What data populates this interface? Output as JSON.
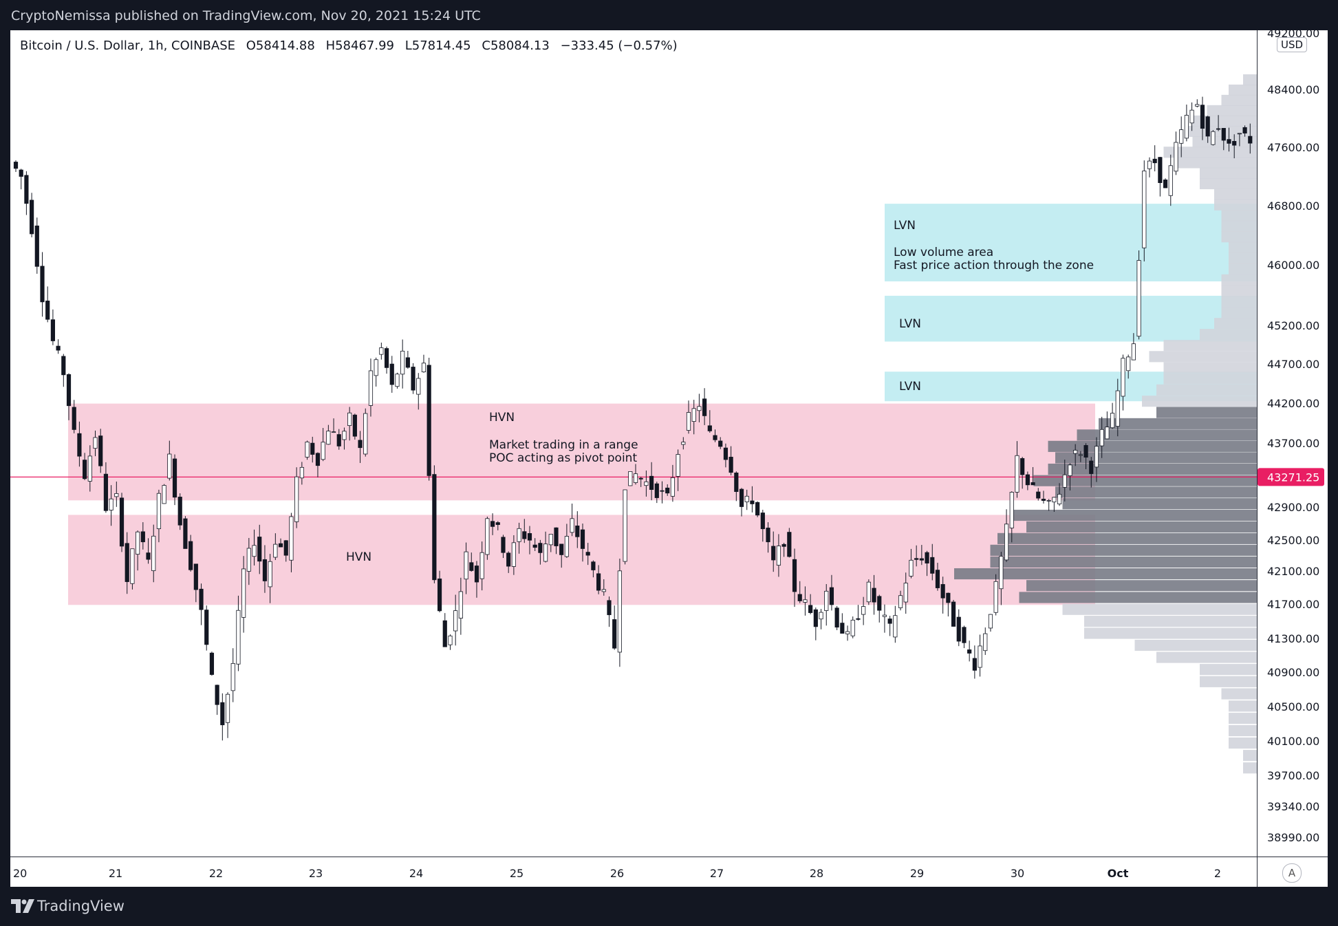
{
  "publisher_line": "CryptoNemissa published on TradingView.com, Nov 20, 2021 15:24 UTC",
  "legend": {
    "symbol": "Bitcoin / U.S. Dollar, 1h, COINBASE",
    "open": "O58414.88",
    "high": "H58467.99",
    "low": "L57814.45",
    "close": "C58084.13",
    "change": "−333.45 (−0.57%)"
  },
  "currency": "USD",
  "brand": "TradingView",
  "auto_label": "A",
  "colors": {
    "hvn_fill": "#f8cfdc",
    "lvn_fill": "#c4edf2",
    "poc_line": "#e91e63",
    "poc_label_bg": "#e91e63",
    "candle_up": "#ffffff",
    "candle_down": "#131722",
    "profile_light": "#d1d4dc",
    "profile_dark": "#787b86",
    "background_dark": "#131722"
  },
  "price_ticks": [
    "49200.00",
    "48400.00",
    "47600.00",
    "46800.00",
    "46000.00",
    "45200.00",
    "44700.00",
    "44200.00",
    "43700.00",
    "42900.00",
    "42500.00",
    "42100.00",
    "41700.00",
    "41300.00",
    "40900.00",
    "40500.00",
    "40100.00",
    "39700.00",
    "39340.00",
    "38990.00"
  ],
  "time_ticks": [
    "20",
    "21",
    "22",
    "23",
    "24",
    "25",
    "26",
    "27",
    "28",
    "29",
    "30",
    "Oct",
    "2"
  ],
  "poc_price": "43271.25",
  "zones": {
    "hvn_upper": {
      "title": "HVN",
      "line1": "Market trading in a range",
      "line2": "POC acting as pivot point",
      "price_top": 44200,
      "price_bottom": 42980
    },
    "hvn_lower": {
      "title": "HVN",
      "price_top": 42800,
      "price_bottom": 41700
    },
    "lvn_top": {
      "title": "LVN",
      "line1": "Low volume area",
      "line2": "Fast price action through the zone",
      "price_top": 46830,
      "price_bottom": 45790
    },
    "lvn_mid": {
      "title": "LVN",
      "price_top": 45600,
      "price_bottom": 45000
    },
    "lvn_low": {
      "title": "LVN",
      "price_top": 44610,
      "price_bottom": 44230
    }
  },
  "chart_data": {
    "type": "candlestick",
    "title": "Bitcoin / U.S. Dollar, 1h, COINBASE",
    "x_axis_labels": [
      "20",
      "21",
      "22",
      "23",
      "24",
      "25",
      "26",
      "27",
      "28",
      "29",
      "30",
      "Oct",
      "2"
    ],
    "ylim": [
      38800,
      49300
    ],
    "y_scale": "log",
    "poc": 43271.25,
    "close_path": [
      [
        0,
        47400
      ],
      [
        2,
        47200
      ],
      [
        4,
        46500
      ],
      [
        6,
        45600
      ],
      [
        8,
        45000
      ],
      [
        10,
        44600
      ],
      [
        12,
        43800
      ],
      [
        14,
        43300
      ],
      [
        16,
        43800
      ],
      [
        18,
        42900
      ],
      [
        20,
        43000
      ],
      [
        22,
        42000
      ],
      [
        24,
        42600
      ],
      [
        26,
        42200
      ],
      [
        28,
        43000
      ],
      [
        30,
        43500
      ],
      [
        32,
        42700
      ],
      [
        34,
        42200
      ],
      [
        36,
        41600
      ],
      [
        38,
        40800
      ],
      [
        40,
        40300
      ],
      [
        42,
        41000
      ],
      [
        44,
        42100
      ],
      [
        46,
        42500
      ],
      [
        48,
        42000
      ],
      [
        50,
        42500
      ],
      [
        52,
        42300
      ],
      [
        54,
        43200
      ],
      [
        56,
        43700
      ],
      [
        58,
        43500
      ],
      [
        60,
        43900
      ],
      [
        62,
        43700
      ],
      [
        64,
        44000
      ],
      [
        66,
        43600
      ],
      [
        68,
        44600
      ],
      [
        70,
        44900
      ],
      [
        72,
        44400
      ],
      [
        74,
        44800
      ],
      [
        76,
        44400
      ],
      [
        78,
        44700
      ],
      [
        80,
        42000
      ],
      [
        82,
        41200
      ],
      [
        84,
        41600
      ],
      [
        86,
        42300
      ],
      [
        88,
        42000
      ],
      [
        90,
        42800
      ],
      [
        92,
        42600
      ],
      [
        94,
        42200
      ],
      [
        96,
        42600
      ],
      [
        98,
        42500
      ],
      [
        100,
        42300
      ],
      [
        102,
        42600
      ],
      [
        104,
        42300
      ],
      [
        106,
        42700
      ],
      [
        108,
        42400
      ],
      [
        110,
        42100
      ],
      [
        112,
        41800
      ],
      [
        114,
        41200
      ],
      [
        116,
        43200
      ],
      [
        118,
        43300
      ],
      [
        120,
        43200
      ],
      [
        122,
        43100
      ],
      [
        124,
        43000
      ],
      [
        126,
        43600
      ],
      [
        128,
        44000
      ],
      [
        130,
        44200
      ],
      [
        132,
        43800
      ],
      [
        134,
        43700
      ],
      [
        136,
        43400
      ],
      [
        138,
        42900
      ],
      [
        140,
        43000
      ],
      [
        142,
        42600
      ],
      [
        144,
        42200
      ],
      [
        146,
        42500
      ],
      [
        148,
        41900
      ],
      [
        150,
        41700
      ],
      [
        152,
        41500
      ],
      [
        154,
        41900
      ],
      [
        156,
        41500
      ],
      [
        158,
        41300
      ],
      [
        160,
        41600
      ],
      [
        162,
        41900
      ],
      [
        164,
        41600
      ],
      [
        166,
        41400
      ],
      [
        168,
        41800
      ],
      [
        170,
        42200
      ],
      [
        172,
        42300
      ],
      [
        174,
        42100
      ],
      [
        176,
        41800
      ],
      [
        178,
        41500
      ],
      [
        180,
        41200
      ],
      [
        182,
        41000
      ],
      [
        184,
        41400
      ],
      [
        186,
        41900
      ],
      [
        188,
        42600
      ],
      [
        190,
        43500
      ],
      [
        192,
        43200
      ],
      [
        194,
        43000
      ],
      [
        196,
        42900
      ],
      [
        198,
        43100
      ],
      [
        200,
        43500
      ],
      [
        202,
        43600
      ],
      [
        204,
        43400
      ],
      [
        206,
        43800
      ],
      [
        208,
        44000
      ],
      [
        210,
        44700
      ],
      [
        212,
        45000
      ],
      [
        214,
        47300
      ],
      [
        216,
        47400
      ],
      [
        218,
        47000
      ],
      [
        220,
        47600
      ],
      [
        222,
        48000
      ],
      [
        224,
        48200
      ],
      [
        226,
        47700
      ],
      [
        228,
        47900
      ],
      [
        230,
        47600
      ],
      [
        232,
        47800
      ],
      [
        234,
        47700
      ]
    ]
  }
}
